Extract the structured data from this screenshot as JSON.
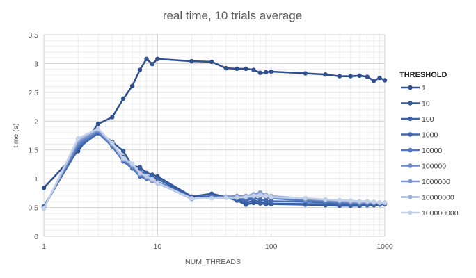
{
  "chart_data": {
    "type": "line",
    "title": "real time, 10 trials average",
    "xlabel": "NUM_THREADS",
    "ylabel": "time (s)",
    "x_scale": "log",
    "xlim": [
      1,
      1000
    ],
    "ylim": [
      0,
      3.5
    ],
    "x_ticks": [
      "1",
      "10",
      "100",
      "1000"
    ],
    "y_ticks": [
      "0",
      "0.5",
      "1",
      "1.5",
      "2",
      "2.5",
      "3",
      "3.5"
    ],
    "grid": true,
    "legend_title": "THRESHOLD",
    "legend_position": "right",
    "x": [
      1,
      2,
      3,
      4,
      5,
      6,
      7,
      8,
      9,
      10,
      20,
      30,
      40,
      50,
      60,
      70,
      80,
      90,
      100,
      200,
      300,
      400,
      500,
      600,
      700,
      800,
      900,
      1000
    ],
    "series": [
      {
        "name": "1",
        "color": "#2f4f8f",
        "values": [
          0.84,
          1.48,
          1.95,
          2.07,
          2.39,
          2.61,
          2.89,
          3.08,
          2.99,
          3.08,
          3.04,
          3.03,
          2.92,
          2.91,
          2.91,
          2.89,
          2.84,
          2.85,
          2.86,
          2.83,
          2.81,
          2.78,
          2.78,
          2.79,
          2.77,
          2.7,
          2.75,
          2.71
        ]
      },
      {
        "name": "10",
        "color": "#34589c",
        "values": [
          0.52,
          1.52,
          1.82,
          1.64,
          1.48,
          1.22,
          1.2,
          1.1,
          1.07,
          1.04,
          0.69,
          0.74,
          0.68,
          0.62,
          0.55,
          0.58,
          0.57,
          0.56,
          0.56,
          0.55,
          0.54,
          0.53,
          0.53,
          0.53,
          0.54,
          0.54,
          0.55,
          0.56
        ]
      },
      {
        "name": "100",
        "color": "#3a61a6",
        "values": [
          0.51,
          1.54,
          1.79,
          1.59,
          1.38,
          1.2,
          1.14,
          1.06,
          1.02,
          1.0,
          0.67,
          0.7,
          0.67,
          0.64,
          0.58,
          0.62,
          0.6,
          0.58,
          0.57,
          0.56,
          0.56,
          0.55,
          0.54,
          0.55,
          0.55,
          0.56,
          0.56,
          0.57
        ]
      },
      {
        "name": "1000",
        "color": "#4169b0",
        "values": [
          0.5,
          1.56,
          1.8,
          1.56,
          1.3,
          1.18,
          1.04,
          1.0,
          0.97,
          0.95,
          0.66,
          0.69,
          0.68,
          0.66,
          0.62,
          0.66,
          0.64,
          0.62,
          0.61,
          0.6,
          0.59,
          0.57,
          0.57,
          0.57,
          0.57,
          0.57,
          0.58,
          0.58
        ]
      },
      {
        "name": "10000",
        "color": "#5478bb",
        "values": [
          0.5,
          1.58,
          1.82,
          1.57,
          1.32,
          1.2,
          1.06,
          1.01,
          0.96,
          0.94,
          0.66,
          0.68,
          0.68,
          0.68,
          0.66,
          0.68,
          0.7,
          0.68,
          0.66,
          0.62,
          0.6,
          0.58,
          0.58,
          0.57,
          0.58,
          0.58,
          0.59,
          0.58
        ]
      },
      {
        "name": "100000",
        "color": "#6a89c6",
        "values": [
          0.49,
          1.62,
          1.83,
          1.58,
          1.33,
          1.22,
          1.08,
          1.02,
          0.97,
          0.93,
          0.65,
          0.67,
          0.69,
          0.7,
          0.7,
          0.72,
          0.74,
          0.71,
          0.69,
          0.64,
          0.62,
          0.6,
          0.59,
          0.58,
          0.59,
          0.58,
          0.58,
          0.58
        ]
      },
      {
        "name": "1000000",
        "color": "#8099d0",
        "values": [
          0.49,
          1.65,
          1.85,
          1.6,
          1.35,
          1.23,
          1.1,
          1.03,
          0.97,
          0.93,
          0.65,
          0.67,
          0.68,
          0.68,
          0.7,
          0.73,
          0.76,
          0.72,
          0.7,
          0.65,
          0.63,
          0.62,
          0.6,
          0.59,
          0.59,
          0.59,
          0.58,
          0.58
        ]
      },
      {
        "name": "10000000",
        "color": "#a3b4dc",
        "values": [
          0.48,
          1.68,
          1.86,
          1.61,
          1.34,
          1.25,
          1.09,
          1.04,
          0.98,
          0.92,
          0.66,
          0.66,
          0.67,
          0.68,
          0.69,
          0.71,
          0.73,
          0.71,
          0.69,
          0.66,
          0.64,
          0.62,
          0.61,
          0.6,
          0.6,
          0.59,
          0.58,
          0.58
        ]
      },
      {
        "name": "100000000",
        "color": "#c3d0ea",
        "values": [
          0.48,
          1.7,
          1.87,
          1.62,
          1.36,
          1.26,
          1.1,
          1.05,
          0.99,
          0.93,
          0.66,
          0.66,
          0.67,
          0.67,
          0.68,
          0.7,
          0.71,
          0.7,
          0.68,
          0.66,
          0.64,
          0.63,
          0.62,
          0.61,
          0.61,
          0.6,
          0.59,
          0.59
        ]
      }
    ]
  }
}
